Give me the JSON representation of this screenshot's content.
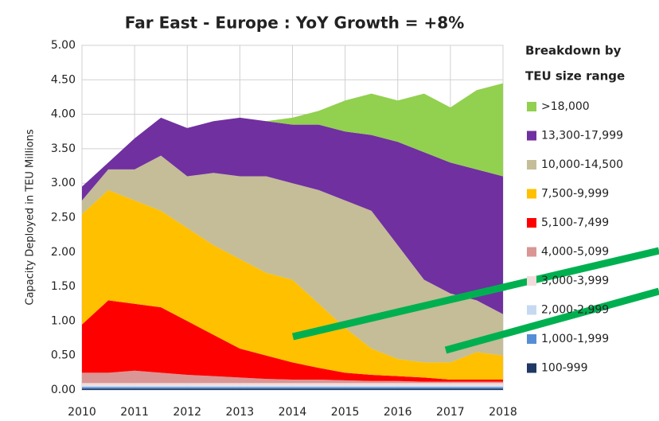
{
  "chart_data": {
    "type": "stacked_area",
    "title": "Far East - Europe : YoY Growth = +8%",
    "ylabel": "Capacity Deployed in TEU Millions",
    "legend_title": [
      "Breakdown by",
      "TEU size range"
    ],
    "x": [
      2010,
      2010.5,
      2011,
      2011.5,
      2012,
      2012.5,
      2013,
      2013.5,
      2014,
      2014.5,
      2015,
      2015.5,
      2016,
      2016.5,
      2017,
      2017.5,
      2018
    ],
    "xlim": [
      2010,
      2018
    ],
    "xticks": [
      2010,
      2011,
      2012,
      2013,
      2014,
      2015,
      2016,
      2017,
      2018
    ],
    "ylim": [
      0,
      5
    ],
    "yticks": [
      {
        "value": 0,
        "label": "0.00"
      },
      {
        "value": 0.5,
        "label": "0.50"
      },
      {
        "value": 1,
        "label": "1.00"
      },
      {
        "value": 1.5,
        "label": "1.50"
      },
      {
        "value": 2,
        "label": "2.00"
      },
      {
        "value": 2.5,
        "label": "2.50"
      },
      {
        "value": 3,
        "label": "3.00"
      },
      {
        "value": 3.5,
        "label": "3.50"
      },
      {
        "value": 4,
        "label": "4.00"
      },
      {
        "value": 4.5,
        "label": "4.50"
      },
      {
        "value": 5,
        "label": "5.00"
      }
    ],
    "grid": true,
    "series": [
      {
        "name": "100-999",
        "color": "#1f3864",
        "values": [
          0.02,
          0.02,
          0.02,
          0.02,
          0.02,
          0.02,
          0.02,
          0.02,
          0.02,
          0.02,
          0.02,
          0.02,
          0.02,
          0.02,
          0.02,
          0.02,
          0.02
        ]
      },
      {
        "name": "1,000-1,999",
        "color": "#558ed5",
        "values": [
          0.02,
          0.02,
          0.02,
          0.02,
          0.02,
          0.02,
          0.02,
          0.02,
          0.02,
          0.02,
          0.02,
          0.02,
          0.02,
          0.02,
          0.02,
          0.02,
          0.02
        ]
      },
      {
        "name": "2,000-2,999",
        "color": "#c6d9f1",
        "values": [
          0.02,
          0.02,
          0.02,
          0.02,
          0.02,
          0.02,
          0.02,
          0.02,
          0.02,
          0.02,
          0.02,
          0.02,
          0.02,
          0.02,
          0.02,
          0.02,
          0.02
        ]
      },
      {
        "name": "3,000-3,999",
        "color": "#f2dcdb",
        "values": [
          0.04,
          0.04,
          0.04,
          0.04,
          0.04,
          0.04,
          0.04,
          0.04,
          0.04,
          0.04,
          0.04,
          0.04,
          0.04,
          0.04,
          0.04,
          0.04,
          0.04
        ]
      },
      {
        "name": "4,000-5,099",
        "color": "#d99694",
        "values": [
          0.15,
          0.15,
          0.18,
          0.15,
          0.12,
          0.1,
          0.08,
          0.06,
          0.05,
          0.05,
          0.04,
          0.03,
          0.03,
          0.02,
          0.02,
          0.02,
          0.02
        ]
      },
      {
        "name": "5,100-7,499",
        "color": "#ff0000",
        "values": [
          0.7,
          1.05,
          0.97,
          0.95,
          0.78,
          0.6,
          0.42,
          0.34,
          0.25,
          0.17,
          0.11,
          0.09,
          0.07,
          0.06,
          0.03,
          0.03,
          0.03
        ]
      },
      {
        "name": "7,500-9,999",
        "color": "#ffc000",
        "values": [
          1.6,
          1.6,
          1.5,
          1.4,
          1.35,
          1.3,
          1.3,
          1.2,
          1.2,
          0.93,
          0.65,
          0.38,
          0.25,
          0.22,
          0.25,
          0.4,
          0.35
        ]
      },
      {
        "name": "10,000-14,500",
        "color": "#c4bd97",
        "values": [
          0.2,
          0.3,
          0.45,
          0.8,
          0.75,
          1.05,
          1.2,
          1.4,
          1.4,
          1.65,
          1.85,
          2.0,
          1.65,
          1.2,
          1.0,
          0.75,
          0.6
        ]
      },
      {
        "name": "13,300-17,999",
        "color": "#7030a0",
        "values": [
          0.2,
          0.1,
          0.45,
          0.55,
          0.7,
          0.75,
          0.85,
          0.8,
          0.85,
          0.95,
          1.0,
          1.1,
          1.5,
          1.85,
          1.9,
          1.9,
          2.0
        ]
      },
      {
        "name": ">18,000",
        "color": "#92d050",
        "values": [
          0,
          0,
          0,
          0,
          0,
          0,
          0,
          0,
          0.1,
          0.2,
          0.45,
          0.6,
          0.6,
          0.85,
          0.8,
          1.15,
          1.35
        ]
      }
    ]
  }
}
